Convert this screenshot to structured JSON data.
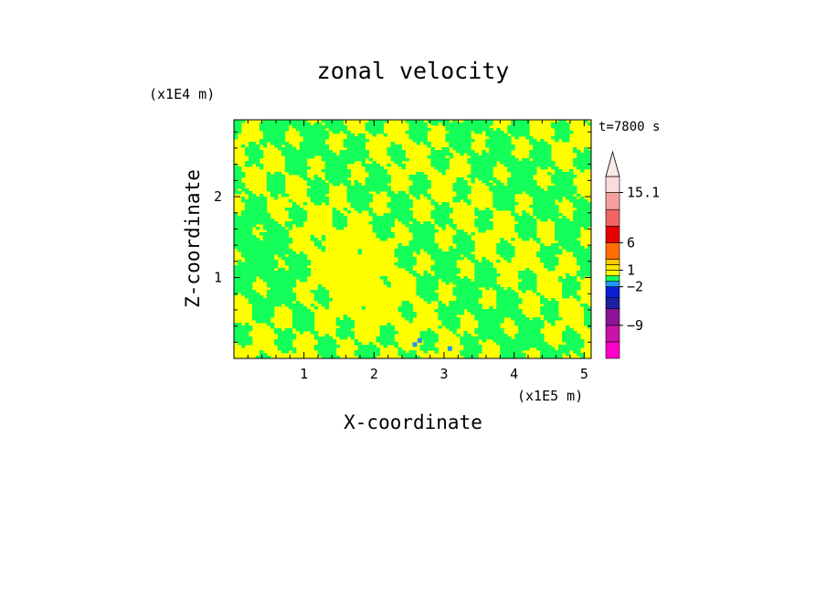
{
  "chart_data": {
    "type": "heatmap",
    "title": "zonal velocity",
    "xlabel": "X-coordinate",
    "ylabel": "Z-coordinate",
    "x_unit": "(x1E5 m)",
    "y_unit": "(x1E4 m)",
    "time_label": "t=7800 s",
    "xlim": [
      0,
      5.1
    ],
    "ylim": [
      0,
      2.95
    ],
    "x_ticks": [
      1,
      2,
      3,
      4,
      5
    ],
    "y_ticks": [
      1,
      2
    ],
    "colorbar": {
      "labels": [
        {
          "text": "15.1",
          "value": 15.1
        },
        {
          "text": "6",
          "value": 6
        },
        {
          "text": "1",
          "value": 1
        },
        {
          "text": "−2",
          "value": -2
        },
        {
          "text": "−9",
          "value": -9
        }
      ],
      "levels": [
        {
          "color": "#ff00c8"
        },
        {
          "color": "#c814a8"
        },
        {
          "color": "#8c1496"
        },
        {
          "color": "#1e1ea0"
        },
        {
          "color": "#0a1ed2"
        },
        {
          "color": "#1e96ff"
        },
        {
          "color": "#14ff5a"
        },
        {
          "color": "#ffff00"
        },
        {
          "color": "#ffe600"
        },
        {
          "color": "#ffc800"
        },
        {
          "color": "#ff6e00"
        },
        {
          "color": "#e60000"
        },
        {
          "color": "#f06464"
        },
        {
          "color": "#f5a0a0"
        },
        {
          "color": "#fadcdc"
        }
      ]
    },
    "field_colors": {
      "positive": "#ffff00",
      "near_zero": "#14ff5a",
      "slight_negative": "#1e96ff"
    }
  }
}
